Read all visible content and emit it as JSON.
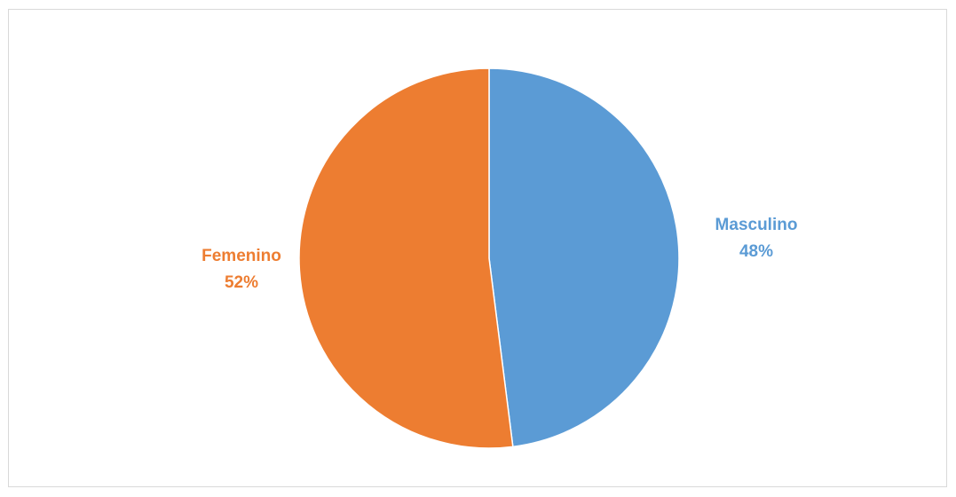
{
  "chart_data": {
    "type": "pie",
    "title": "",
    "slices": [
      {
        "name": "Masculino",
        "value": 48,
        "label_value": "48%",
        "color": "#5B9BD5"
      },
      {
        "name": "Femenino",
        "value": 52,
        "label_value": "52%",
        "color": "#ED7D31"
      }
    ],
    "start_angle_deg": 0,
    "direction": "clockwise",
    "legend": "none",
    "border_color": "#d9d9d9"
  }
}
